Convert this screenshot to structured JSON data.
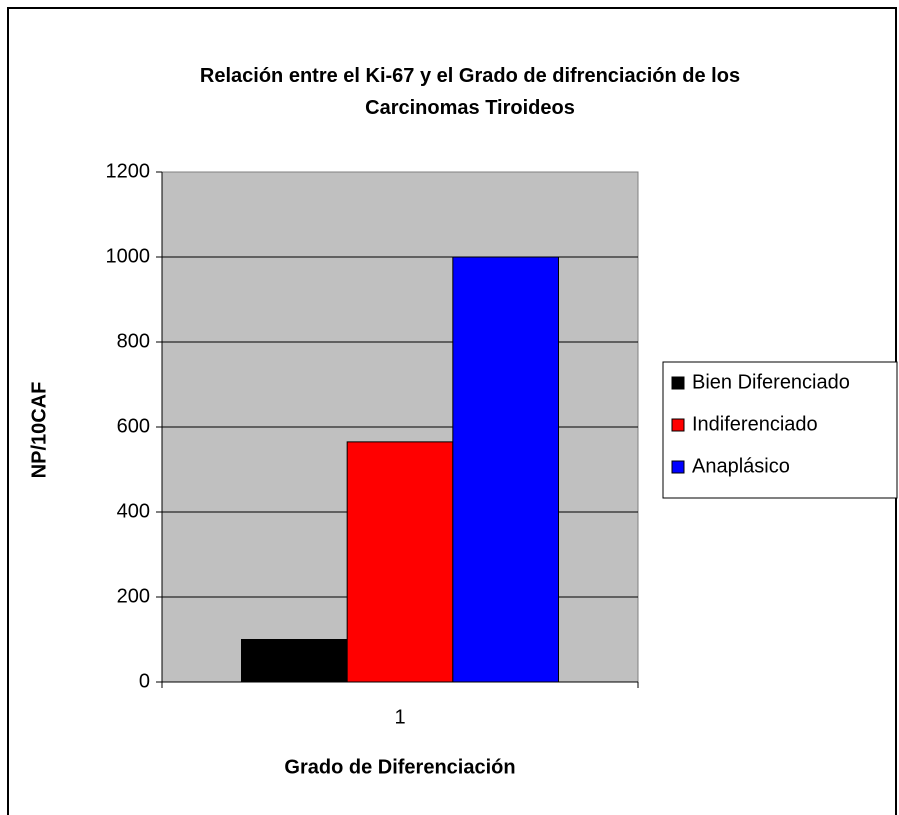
{
  "chart_data": {
    "type": "bar",
    "title": "Relación entre el Ki-67 y el Grado de difrenciación de los Carcinomas Tiroideos",
    "x_label": "Grado de Diferenciación",
    "y_label": "NP/10CAF",
    "categories": [
      "1"
    ],
    "series": [
      {
        "name": "Bien Diferenciado",
        "color": "#000000",
        "values": [
          100
        ]
      },
      {
        "name": "Indiferenciado",
        "color": "#ff0000",
        "values": [
          565
        ]
      },
      {
        "name": "Anaplásico",
        "color": "#0000ff",
        "values": [
          1000
        ]
      }
    ],
    "ylim": [
      0,
      1200
    ],
    "yticks": [
      0,
      200,
      400,
      600,
      800,
      1000,
      1200
    ],
    "grid": true,
    "legend": "right",
    "plot_background": "#c0c0c0"
  }
}
